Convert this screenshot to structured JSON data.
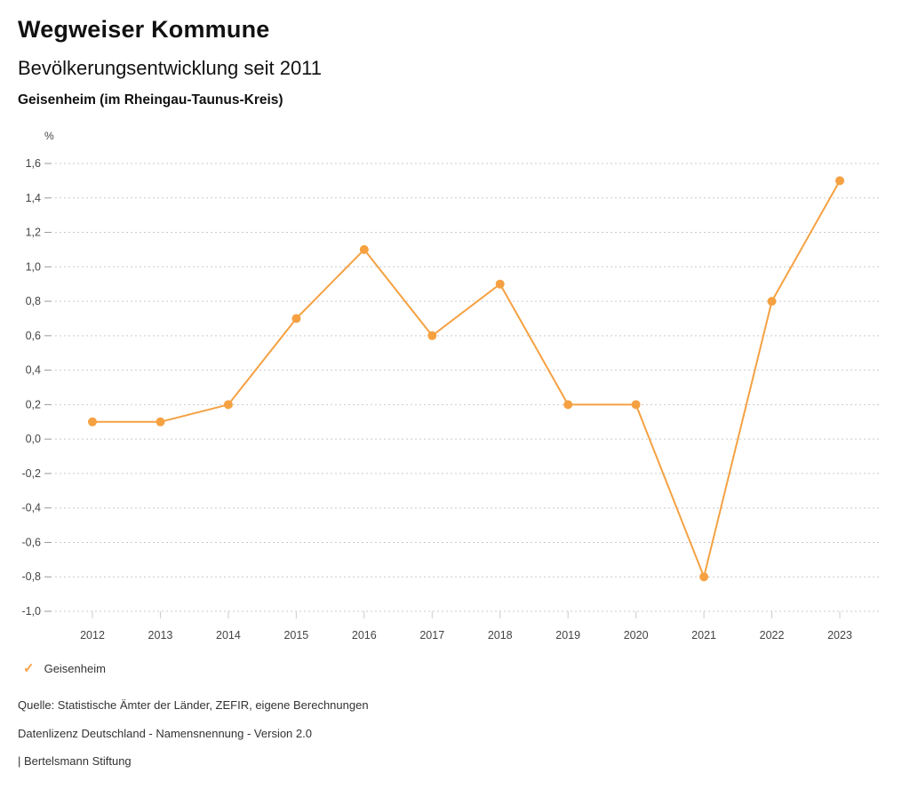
{
  "header": {
    "title": "Wegweiser Kommune",
    "subtitle": "Bevölkerungsentwicklung seit 2011",
    "location": "Geisenheim (im Rheingau-Taunus-Kreis)"
  },
  "chart_data": {
    "type": "line",
    "title": "Bevölkerungsentwicklung seit 2011",
    "subtitle": "Geisenheim (im Rheingau-Taunus-Kreis)",
    "unit_label": "%",
    "categories": [
      "2012",
      "2013",
      "2014",
      "2015",
      "2016",
      "2017",
      "2018",
      "2019",
      "2020",
      "2021",
      "2022",
      "2023"
    ],
    "series": [
      {
        "name": "Geisenheim",
        "color": "#F5A142",
        "values": [
          0.1,
          0.1,
          0.2,
          0.7,
          1.1,
          0.6,
          0.9,
          0.2,
          0.2,
          -0.8,
          0.8,
          1.5
        ]
      }
    ],
    "ylim": [
      -1.0,
      1.6
    ],
    "ytick_step": 0.2,
    "yticks": [
      1.6,
      1.4,
      1.2,
      1.0,
      0.8,
      0.6,
      0.4,
      0.2,
      0.0,
      -0.2,
      -0.4,
      -0.6,
      -0.8,
      -1.0
    ],
    "ytick_labels": [
      "1,6",
      "1,4",
      "1,2",
      "1,0",
      "0,8",
      "0,6",
      "0,4",
      "0,2",
      "0,0",
      "-0,2",
      "-0,4",
      "-0,6",
      "-0,8",
      "-1,0"
    ],
    "xlabel": "",
    "ylabel": "%",
    "grid": "dotted-horizontal",
    "grid_color": "#c9c9c9",
    "legend_position": "bottom-left"
  },
  "legend": {
    "icon": "check-icon",
    "icon_glyph": "✓",
    "label": "Geisenheim"
  },
  "footer": {
    "source": "Quelle: Statistische Ämter der Länder, ZEFIR, eigene Berechnungen",
    "license": "Datenlizenz Deutschland - Namensnennung - Version 2.0",
    "attribution": "| Bertelsmann Stiftung"
  }
}
